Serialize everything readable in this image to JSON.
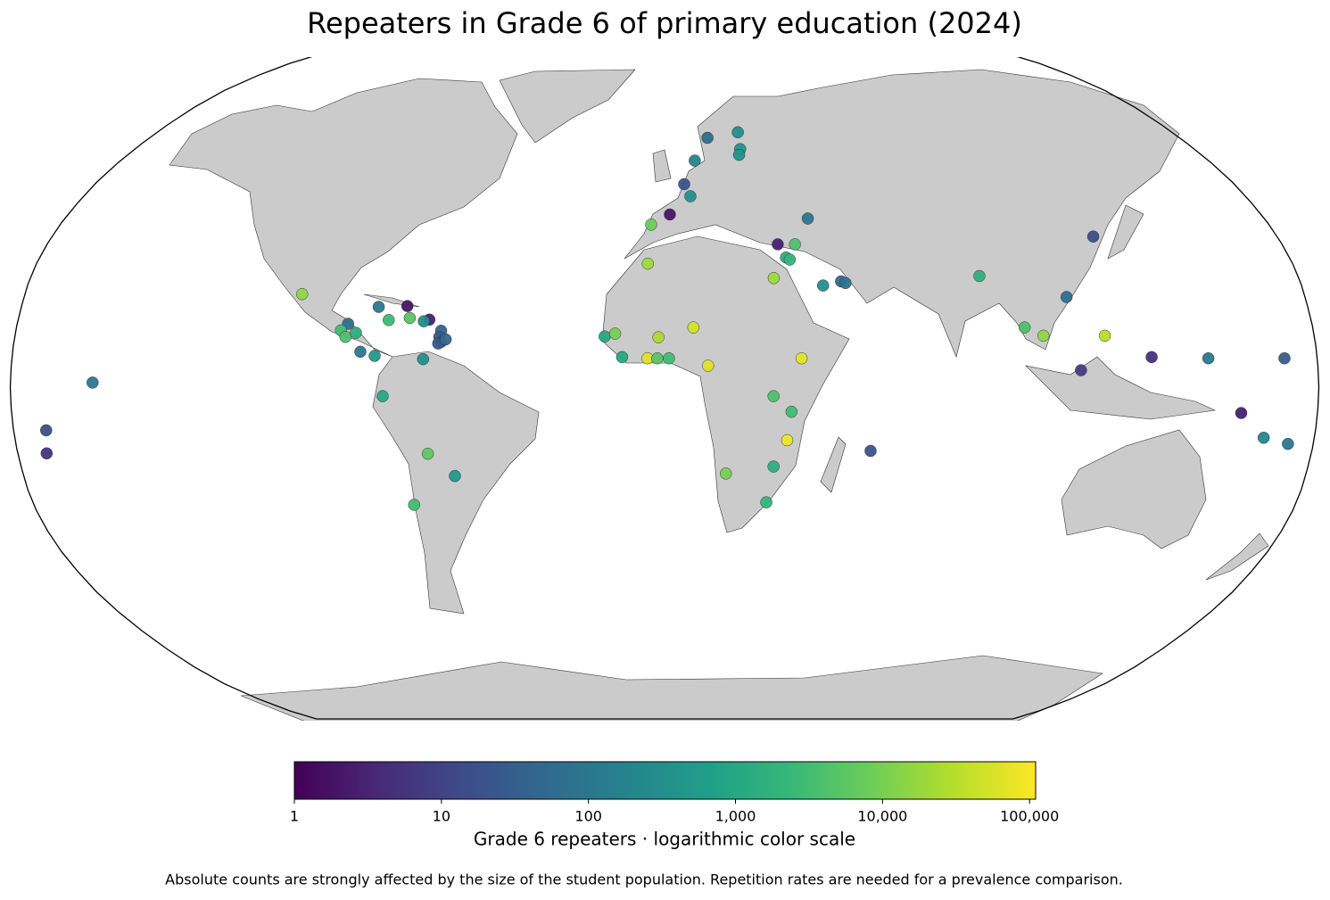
{
  "chart_data": {
    "type": "map",
    "title": "Repeaters in Grade 6 of primary education (2024)",
    "colorbar_label": "Grade 6 repeaters · logarithmic color scale",
    "note": "Absolute counts are strongly affected by the size of the student population. Repetition rates are needed for a prevalence comparison.",
    "color_scale": "log",
    "colormap": "viridis",
    "clim": [
      1,
      110000
    ],
    "cticks": [
      1,
      10,
      100,
      {
        "value": 1000,
        "label": "1,000"
      },
      {
        "value": 10000,
        "label": "10,000"
      },
      {
        "value": 100000,
        "label": "100,000"
      }
    ],
    "x": [
      15,
      26,
      10,
      25.7,
      25,
      6.2,
      8,
      1.6,
      -4,
      43,
      33,
      38,
      35,
      36,
      31,
      44.8,
      50,
      51.2,
      89.5,
      126,
      113,
      100,
      105,
      122,
      114.7,
      134.4,
      150,
      171,
      159,
      166,
      173,
      57.3,
      -157.4,
      -171,
      -172,
      -102,
      -80,
      -72,
      -65.5,
      -71,
      -67,
      -88,
      -89.8,
      -88.4,
      -85.6,
      -76.8,
      -84,
      -80,
      -66.6,
      -62,
      -62.4,
      -61.8,
      -62.6,
      -60.6,
      -77.6,
      -65.9,
      -58.9,
      -71.5,
      -4.8,
      -16.6,
      -13.7,
      -11.7,
      -4.7,
      -1.7,
      -2,
      1.2,
      8,
      12,
      37.8,
      30,
      35,
      34,
      17.2,
      30.5,
      29
    ],
    "y": [
      61.5,
      63,
      55.5,
      58.5,
      57,
      49.5,
      46.5,
      42,
      39.5,
      41,
      34.7,
      34.7,
      31.5,
      31,
      26.5,
      24.7,
      25.7,
      25.3,
      27,
      36.6,
      21.9,
      14.5,
      12.5,
      12.5,
      4.1,
      7.3,
      7,
      7,
      -6.3,
      -12.3,
      -13.8,
      -15.5,
      1.1,
      -10.5,
      -16.1,
      22.6,
      19.5,
      19.7,
      16.4,
      16.8,
      16,
      15.4,
      13.8,
      12.2,
      13.2,
      16.3,
      8.6,
      7.6,
      6.8,
      13.7,
      12.2,
      11,
      10.6,
      11.6,
      -2.2,
      -16.2,
      -21.6,
      -28.6,
      30,
      12.3,
      13,
      7.3,
      7,
      12.1,
      7,
      7,
      14.5,
      5.2,
      7,
      -2.2,
      -6,
      -12.9,
      -21,
      -19.3,
      -28
    ],
    "values": [
      60,
      300,
      200,
      400,
      400,
      20,
      300,
      2,
      8000,
      100,
      3,
      4000,
      1500,
      2000,
      20000,
      300,
      60,
      80,
      1500,
      15,
      60,
      4000,
      15000,
      30000,
      8,
      5,
      100,
      30,
      3,
      200,
      100,
      20,
      100,
      15,
      6,
      15000,
      100,
      2,
      3,
      5000,
      300,
      60,
      3000,
      4000,
      1500,
      2500,
      100,
      500,
      300,
      40,
      30,
      20,
      25,
      50,
      1000,
      6000,
      500,
      3000,
      20000,
      1000,
      10000,
      1000,
      60000,
      25000,
      5000,
      3000,
      50000,
      60000,
      70000,
      4000,
      3000,
      80000,
      10000,
      1500,
      2000
    ]
  }
}
